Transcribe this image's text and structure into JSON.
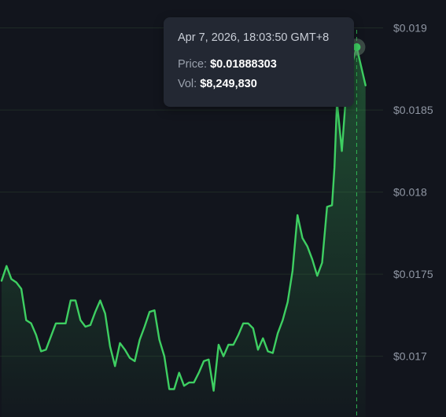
{
  "colors": {
    "background": "#12151d",
    "line": "#3ecf62",
    "grid": "#1f2b26",
    "crosshair": "#2fb552",
    "tooltip_bg": "#232833"
  },
  "tooltip": {
    "date": "Apr 7, 2026, 18:03:50 GMT+8",
    "price_label": "Price:",
    "price_value": "$0.01888303",
    "vol_label": "Vol:",
    "vol_value": "$8,249,830"
  },
  "chart_data": {
    "type": "area",
    "title": "",
    "xlabel": "",
    "ylabel": "",
    "yaxis_position": "right",
    "grid": "horizontal",
    "ylim": [
      0.01663,
      0.01917
    ],
    "y_ticks": [
      0.017,
      0.0175,
      0.018,
      0.0185,
      0.019
    ],
    "y_tick_labels": [
      "$0.017",
      "$0.0175",
      "$0.018",
      "$0.0185",
      "$0.019"
    ],
    "x": [
      0,
      1,
      2,
      3,
      4,
      5,
      6,
      7,
      8,
      9,
      10,
      11,
      12,
      13,
      14,
      15,
      16,
      17,
      18,
      19,
      20,
      21,
      22,
      23,
      24,
      25,
      26,
      27,
      28,
      29,
      30,
      31,
      32,
      33,
      34,
      35,
      36,
      37,
      38,
      39,
      40,
      41,
      42,
      43,
      44,
      45,
      46,
      47,
      48,
      49,
      50,
      51,
      52,
      53,
      54,
      55,
      56,
      57,
      58,
      59,
      60,
      61,
      62,
      63,
      64,
      65,
      66,
      67,
      67.5,
      68,
      69,
      70
    ],
    "values": [
      0.01746,
      0.01755,
      0.01747,
      0.01745,
      0.01741,
      0.01722,
      0.0172,
      0.01713,
      0.01703,
      0.01704,
      0.01712,
      0.0172,
      0.0172,
      0.0172,
      0.01734,
      0.01734,
      0.01722,
      0.01718,
      0.01719,
      0.01727,
      0.01734,
      0.01726,
      0.01706,
      0.01694,
      0.01708,
      0.01704,
      0.01699,
      0.01697,
      0.0171,
      0.01718,
      0.01727,
      0.01728,
      0.0171,
      0.017,
      0.0168,
      0.0168,
      0.0169,
      0.01682,
      0.01684,
      0.01684,
      0.0169,
      0.01697,
      0.01698,
      0.01679,
      0.01707,
      0.017,
      0.01707,
      0.01707,
      0.01713,
      0.0172,
      0.0172,
      0.01717,
      0.01704,
      0.01711,
      0.01703,
      0.01702,
      0.01714,
      0.01722,
      0.01733,
      0.01752,
      0.01786,
      0.01772,
      0.01767,
      0.01759,
      0.01749,
      0.01757,
      0.01791,
      0.01792,
      0.01815,
      0.01855,
      0.01825,
      0.01866
    ],
    "highlight": {
      "x": 72,
      "value": 0.01888303
    }
  }
}
